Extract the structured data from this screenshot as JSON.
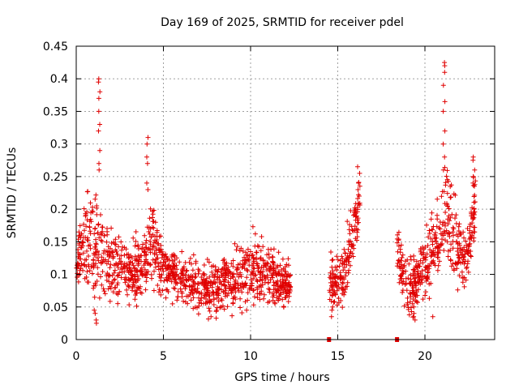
{
  "chart_data": {
    "type": "scatter",
    "title": "Day 169 of 2025, SRMTID for receiver pdel",
    "xlabel": "GPS time / hours",
    "ylabel": "SRMTID / TECUs",
    "xlim": [
      0,
      24
    ],
    "ylim": [
      0,
      0.45
    ],
    "xticks": [
      0,
      5,
      10,
      15,
      20
    ],
    "xtick_labels": [
      "0",
      "5",
      "10",
      "15",
      "20"
    ],
    "yticks": [
      0,
      0.05,
      0.1,
      0.15,
      0.2,
      0.25,
      0.3,
      0.35,
      0.4,
      0.45
    ],
    "ytick_labels": [
      "0",
      "0.05",
      "0.1",
      "0.15",
      "0.2",
      "0.25",
      "0.3",
      "0.35",
      "0.4",
      "0.45"
    ],
    "grid": true,
    "marker": "plus",
    "color": "#e00000",
    "gap_markers_x": [
      14.5,
      18.4
    ],
    "segments": [
      {
        "x_start": 0.0,
        "x_end": 12.3
      },
      {
        "x_start": 14.5,
        "x_end": 16.3
      },
      {
        "x_start": 18.4,
        "x_end": 22.9
      }
    ],
    "profile": [
      {
        "x": 0.0,
        "base": 0.11,
        "spread": 0.02
      },
      {
        "x": 0.3,
        "base": 0.15,
        "spread": 0.05
      },
      {
        "x": 0.6,
        "base": 0.16,
        "spread": 0.06
      },
      {
        "x": 1.0,
        "base": 0.13,
        "spread": 0.07
      },
      {
        "x": 1.3,
        "base": 0.16,
        "spread": 0.08
      },
      {
        "x": 1.6,
        "base": 0.12,
        "spread": 0.06
      },
      {
        "x": 2.0,
        "base": 0.12,
        "spread": 0.05
      },
      {
        "x": 3.0,
        "base": 0.1,
        "spread": 0.04
      },
      {
        "x": 4.0,
        "base": 0.12,
        "spread": 0.05
      },
      {
        "x": 4.3,
        "base": 0.15,
        "spread": 0.06
      },
      {
        "x": 5.0,
        "base": 0.11,
        "spread": 0.04
      },
      {
        "x": 6.0,
        "base": 0.09,
        "spread": 0.035
      },
      {
        "x": 7.0,
        "base": 0.08,
        "spread": 0.035
      },
      {
        "x": 8.0,
        "base": 0.08,
        "spread": 0.035
      },
      {
        "x": 9.0,
        "base": 0.09,
        "spread": 0.04
      },
      {
        "x": 10.0,
        "base": 0.11,
        "spread": 0.045
      },
      {
        "x": 11.0,
        "base": 0.1,
        "spread": 0.04
      },
      {
        "x": 12.3,
        "base": 0.08,
        "spread": 0.03
      },
      {
        "x": 14.5,
        "base": 0.09,
        "spread": 0.03
      },
      {
        "x": 15.2,
        "base": 0.09,
        "spread": 0.035
      },
      {
        "x": 15.8,
        "base": 0.15,
        "spread": 0.05
      },
      {
        "x": 16.3,
        "base": 0.22,
        "spread": 0.03
      },
      {
        "x": 18.4,
        "base": 0.13,
        "spread": 0.04
      },
      {
        "x": 19.2,
        "base": 0.07,
        "spread": 0.04
      },
      {
        "x": 20.0,
        "base": 0.12,
        "spread": 0.04
      },
      {
        "x": 20.8,
        "base": 0.15,
        "spread": 0.06
      },
      {
        "x": 21.2,
        "base": 0.2,
        "spread": 0.08
      },
      {
        "x": 21.8,
        "base": 0.14,
        "spread": 0.05
      },
      {
        "x": 22.4,
        "base": 0.12,
        "spread": 0.04
      },
      {
        "x": 22.9,
        "base": 0.22,
        "spread": 0.05
      }
    ],
    "spikes": [
      {
        "x": 1.3,
        "values": [
          0.4,
          0.395,
          0.38,
          0.37,
          0.35,
          0.33,
          0.32,
          0.29,
          0.27,
          0.26
        ]
      },
      {
        "x": 4.1,
        "values": [
          0.31,
          0.3,
          0.28,
          0.27,
          0.24,
          0.23
        ]
      },
      {
        "x": 16.2,
        "values": [
          0.265,
          0.255,
          0.24,
          0.23,
          0.22
        ]
      },
      {
        "x": 21.1,
        "values": [
          0.425,
          0.42,
          0.41,
          0.39,
          0.365,
          0.35,
          0.32,
          0.3,
          0.28,
          0.26
        ]
      },
      {
        "x": 22.8,
        "values": [
          0.28,
          0.275,
          0.26,
          0.25,
          0.24
        ]
      }
    ],
    "lows": [
      {
        "x": 1.1,
        "values": [
          0.025,
          0.03,
          0.04,
          0.045
        ]
      },
      {
        "x": 14.7,
        "values": [
          0.035,
          0.045,
          0.05
        ]
      },
      {
        "x": 19.4,
        "values": [
          0.03,
          0.035,
          0.04,
          0.05
        ]
      },
      {
        "x": 20.4,
        "values": [
          0.035
        ]
      }
    ]
  }
}
